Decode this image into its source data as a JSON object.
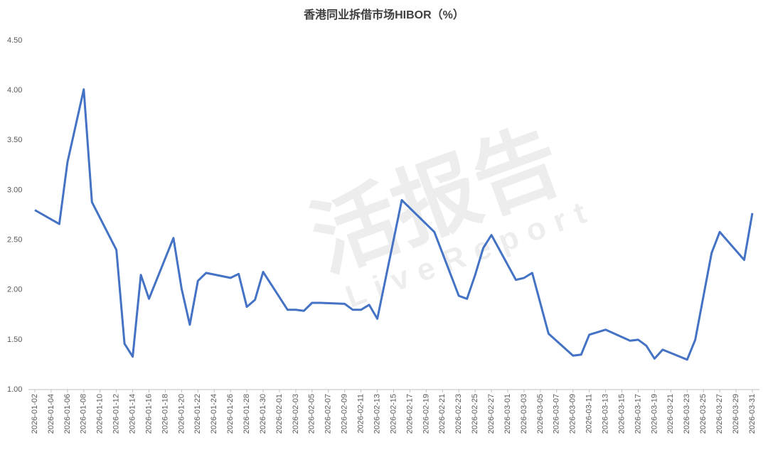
{
  "chart_data": {
    "type": "line",
    "title": "香港同业拆借市场HIBOR（%）",
    "watermark": "活报告",
    "watermark_sub": "LiveReport",
    "color": "#4472c4",
    "x": [
      "2026-01-02",
      "2026-01-05",
      "2026-01-06",
      "2026-01-08",
      "2026-01-09",
      "2026-01-12",
      "2026-01-13",
      "2026-01-14",
      "2026-01-15",
      "2026-01-16",
      "2026-01-19",
      "2026-01-20",
      "2026-01-21",
      "2026-01-22",
      "2026-01-23",
      "2026-01-26",
      "2026-01-27",
      "2026-01-28",
      "2026-01-29",
      "2026-01-30",
      "2026-02-02",
      "2026-02-03",
      "2026-02-04",
      "2026-02-05",
      "2026-02-06",
      "2026-02-09",
      "2026-02-10",
      "2026-02-11",
      "2026-02-12",
      "2026-02-13",
      "2026-02-16",
      "2026-02-20",
      "2026-02-23",
      "2026-02-24",
      "2026-02-25",
      "2026-02-26",
      "2026-02-27",
      "2026-03-02",
      "2026-03-03",
      "2026-03-04",
      "2026-03-06",
      "2026-03-09",
      "2026-03-10",
      "2026-03-11",
      "2026-03-13",
      "2026-03-16",
      "2026-03-17",
      "2026-03-18",
      "2026-03-19",
      "2026-03-20",
      "2026-03-23",
      "2026-03-24",
      "2026-03-26",
      "2026-03-27",
      "2026-03-30",
      "2026-03-31"
    ],
    "values": [
      2.8,
      2.66,
      3.28,
      4.01,
      2.88,
      2.4,
      1.46,
      1.33,
      2.15,
      1.91,
      2.52,
      2.01,
      1.65,
      2.09,
      2.17,
      2.12,
      2.16,
      1.83,
      1.9,
      2.18,
      1.8,
      1.8,
      1.79,
      1.87,
      1.87,
      1.86,
      1.8,
      1.8,
      1.85,
      1.71,
      2.9,
      2.58,
      1.94,
      1.91,
      2.15,
      2.42,
      2.55,
      2.1,
      2.12,
      2.17,
      1.56,
      1.34,
      1.35,
      1.55,
      1.6,
      1.49,
      1.5,
      1.44,
      1.31,
      1.4,
      1.3,
      1.5,
      2.37,
      2.58,
      2.3,
      2.77
    ],
    "xlim": [
      "2026-01-02",
      "2026-03-31"
    ],
    "xticks": [
      "2026-01-02",
      "2026-01-04",
      "2026-01-06",
      "2026-01-08",
      "2026-01-10",
      "2026-01-12",
      "2026-01-14",
      "2026-01-16",
      "2026-01-18",
      "2026-01-20",
      "2026-01-22",
      "2026-01-24",
      "2026-01-26",
      "2026-01-28",
      "2026-01-30",
      "2026-02-01",
      "2026-02-03",
      "2026-02-05",
      "2026-02-07",
      "2026-02-09",
      "2026-02-11",
      "2026-02-13",
      "2026-02-15",
      "2026-02-17",
      "2026-02-19",
      "2026-02-21",
      "2026-02-23",
      "2026-02-25",
      "2026-02-27",
      "2026-03-01",
      "2026-03-03",
      "2026-03-05",
      "2026-03-07",
      "2026-03-09",
      "2026-03-11",
      "2026-03-13",
      "2026-03-15",
      "2026-03-17",
      "2026-03-19",
      "2026-03-21",
      "2026-03-23",
      "2026-03-25",
      "2026-03-27",
      "2026-03-29",
      "2026-03-31"
    ],
    "ylim": [
      1,
      4.5
    ],
    "yticks": [
      {
        "value": 1,
        "label": "1.00"
      },
      {
        "value": 1.5,
        "label": "1.50"
      },
      {
        "value": 2,
        "label": "2.00"
      },
      {
        "value": 2.5,
        "label": "2.50"
      },
      {
        "value": 3,
        "label": "3.00"
      },
      {
        "value": 3.5,
        "label": "3.50"
      },
      {
        "value": 4,
        "label": "4.00"
      },
      {
        "value": 4.5,
        "label": "4.50"
      }
    ],
    "grid": false
  }
}
